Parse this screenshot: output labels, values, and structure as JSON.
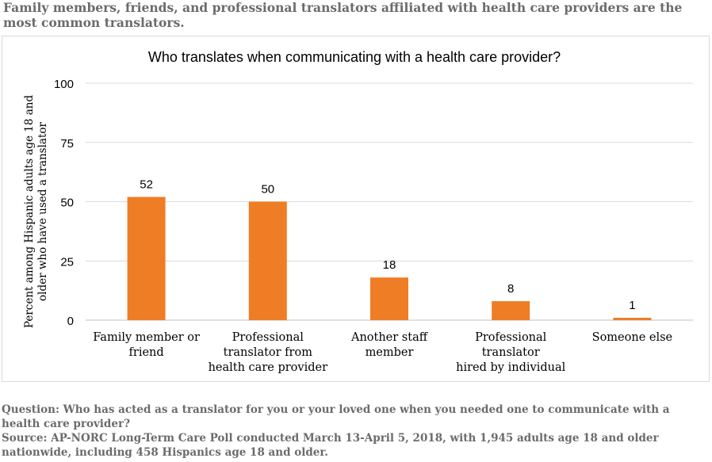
{
  "headline": "Family members, friends, and professional translators affiliated with health care providers are the most common translators.",
  "chart_data": {
    "type": "bar",
    "title": "Who translates when communicating with a health care provider?",
    "ylabel": [
      "Percent among Hispanic adults age 18 and",
      "older who have used a translator"
    ],
    "xlabel": "",
    "ylim": [
      0,
      100
    ],
    "yticks": [
      0,
      25,
      50,
      75,
      100
    ],
    "grid": true,
    "bar_color": "#ee7d26",
    "categories": [
      [
        "Family member or",
        "friend"
      ],
      [
        "Professional",
        "translator from",
        "health care provider"
      ],
      [
        "Another staff",
        "member"
      ],
      [
        "Professional",
        "translator",
        "hired by individual"
      ],
      [
        "Someone else"
      ]
    ],
    "values": [
      52,
      50,
      18,
      8,
      1
    ]
  },
  "footer": {
    "question": "Question: Who has acted as a translator for you or your loved one when you needed one to communicate with a health care provider?",
    "source": "Source: AP-NORC Long-Term Care Poll conducted March 13-April 5, 2018, with 1,945 adults age 18 and older nationwide, including 458 Hispanics age 18 and older."
  }
}
